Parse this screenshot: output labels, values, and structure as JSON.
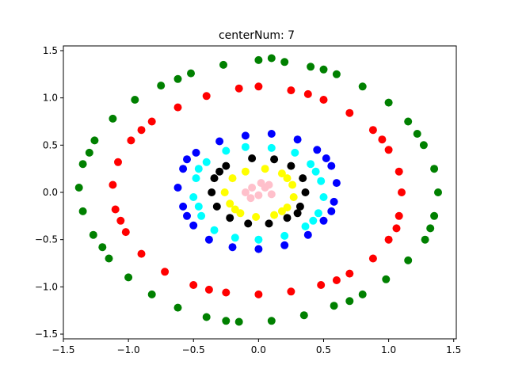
{
  "chart_data": {
    "type": "scatter",
    "title": "centerNum: 7",
    "xlabel": "",
    "ylabel": "",
    "xlim": [
      -1.5,
      1.52
    ],
    "ylim": [
      -1.55,
      1.55
    ],
    "xticks": [
      -1.5,
      -1.0,
      -0.5,
      0.0,
      0.5,
      1.0,
      1.5
    ],
    "yticks": [
      -1.5,
      -1.0,
      -0.5,
      0.0,
      0.5,
      1.0,
      1.5
    ],
    "xtick_labels": [
      "−1.5",
      "−1.0",
      "−0.5",
      "0.0",
      "0.5",
      "1.0",
      "1.5"
    ],
    "ytick_labels": [
      "−1.5",
      "−1.0",
      "−0.5",
      "0.0",
      "0.5",
      "1.0",
      "1.5"
    ],
    "grid": false,
    "legend": "none",
    "series": [
      {
        "color": "#008000",
        "points": [
          [
            0,
            1.4
          ],
          [
            0.2,
            1.38
          ],
          [
            0.4,
            1.33
          ],
          [
            0.6,
            1.25
          ],
          [
            0.8,
            1.12
          ],
          [
            1.0,
            0.95
          ],
          [
            1.15,
            0.75
          ],
          [
            1.27,
            0.5
          ],
          [
            1.35,
            0.25
          ],
          [
            1.38,
            0
          ],
          [
            1.35,
            -0.25
          ],
          [
            1.28,
            -0.5
          ],
          [
            1.15,
            -0.72
          ],
          [
            0.98,
            -0.92
          ],
          [
            0.8,
            -1.08
          ],
          [
            0.58,
            -1.2
          ],
          [
            0.35,
            -1.3
          ],
          [
            0.1,
            -1.36
          ],
          [
            -0.15,
            -1.37
          ],
          [
            -0.4,
            -1.32
          ],
          [
            -0.62,
            -1.22
          ],
          [
            -0.82,
            -1.08
          ],
          [
            -1.0,
            -0.9
          ],
          [
            -1.15,
            -0.7
          ],
          [
            -1.27,
            -0.45
          ],
          [
            -1.35,
            -0.2
          ],
          [
            -1.38,
            0.05
          ],
          [
            -1.35,
            0.3
          ],
          [
            -1.26,
            0.55
          ],
          [
            -1.12,
            0.78
          ],
          [
            -0.95,
            0.98
          ],
          [
            -0.75,
            1.13
          ],
          [
            -0.52,
            1.26
          ],
          [
            -0.27,
            1.35
          ],
          [
            0.1,
            1.42
          ],
          [
            0.5,
            1.3
          ],
          [
            1.22,
            0.62
          ],
          [
            1.32,
            -0.38
          ],
          [
            0.7,
            -1.15
          ],
          [
            -0.25,
            -1.36
          ],
          [
            -1.2,
            -0.58
          ],
          [
            -1.3,
            0.42
          ],
          [
            -0.62,
            1.2
          ]
        ]
      },
      {
        "color": "#ff0000",
        "points": [
          [
            0,
            1.12
          ],
          [
            0.25,
            1.08
          ],
          [
            0.5,
            0.98
          ],
          [
            0.7,
            0.84
          ],
          [
            0.88,
            0.66
          ],
          [
            1.0,
            0.45
          ],
          [
            1.08,
            0.22
          ],
          [
            1.1,
            0
          ],
          [
            1.08,
            -0.25
          ],
          [
            1.0,
            -0.5
          ],
          [
            0.88,
            -0.7
          ],
          [
            0.7,
            -0.86
          ],
          [
            0.48,
            -0.98
          ],
          [
            0.25,
            -1.05
          ],
          [
            0,
            -1.08
          ],
          [
            -0.25,
            -1.06
          ],
          [
            -0.5,
            -0.98
          ],
          [
            -0.72,
            -0.84
          ],
          [
            -0.9,
            -0.65
          ],
          [
            -1.02,
            -0.42
          ],
          [
            -1.1,
            -0.18
          ],
          [
            -1.12,
            0.08
          ],
          [
            -1.08,
            0.32
          ],
          [
            -0.98,
            0.55
          ],
          [
            -0.82,
            0.75
          ],
          [
            -0.62,
            0.9
          ],
          [
            -0.4,
            1.02
          ],
          [
            -0.15,
            1.1
          ],
          [
            0.38,
            1.04
          ],
          [
            0.95,
            0.56
          ],
          [
            1.06,
            -0.38
          ],
          [
            0.6,
            -0.93
          ],
          [
            -0.38,
            -1.03
          ],
          [
            -1.06,
            -0.3
          ],
          [
            -0.9,
            0.66
          ]
        ]
      },
      {
        "color": "#0000ff",
        "points": [
          [
            -0.1,
            0.6
          ],
          [
            0.1,
            0.62
          ],
          [
            0.3,
            0.56
          ],
          [
            0.45,
            0.45
          ],
          [
            0.56,
            0.28
          ],
          [
            0.6,
            0.1
          ],
          [
            0.58,
            -0.1
          ],
          [
            0.5,
            -0.3
          ],
          [
            0.38,
            -0.45
          ],
          [
            0.2,
            -0.56
          ],
          [
            0,
            -0.6
          ],
          [
            -0.2,
            -0.58
          ],
          [
            -0.38,
            -0.5
          ],
          [
            -0.5,
            -0.35
          ],
          [
            -0.58,
            -0.15
          ],
          [
            -0.62,
            0.05
          ],
          [
            -0.58,
            0.25
          ],
          [
            -0.48,
            0.42
          ],
          [
            -0.3,
            0.54
          ],
          [
            0.52,
            0.36
          ],
          [
            0.56,
            -0.2
          ],
          [
            -0.55,
            -0.25
          ],
          [
            -0.55,
            0.35
          ]
        ]
      },
      {
        "color": "#00ffff",
        "points": [
          [
            -0.1,
            0.48
          ],
          [
            0.1,
            0.47
          ],
          [
            0.28,
            0.42
          ],
          [
            0.4,
            0.3
          ],
          [
            0.48,
            0.12
          ],
          [
            0.5,
            -0.05
          ],
          [
            0.46,
            -0.22
          ],
          [
            0.36,
            -0.36
          ],
          [
            0.2,
            -0.46
          ],
          [
            0,
            -0.5
          ],
          [
            -0.18,
            -0.48
          ],
          [
            -0.34,
            -0.4
          ],
          [
            -0.44,
            -0.25
          ],
          [
            -0.5,
            -0.05
          ],
          [
            -0.48,
            0.15
          ],
          [
            -0.4,
            0.32
          ],
          [
            -0.25,
            0.44
          ],
          [
            0.44,
            0.22
          ],
          [
            0.42,
            -0.3
          ],
          [
            -0.46,
            -0.15
          ],
          [
            -0.46,
            0.25
          ]
        ]
      },
      {
        "color": "#000000",
        "points": [
          [
            -0.05,
            0.36
          ],
          [
            0.12,
            0.35
          ],
          [
            0.25,
            0.28
          ],
          [
            0.34,
            0.15
          ],
          [
            0.36,
            0
          ],
          [
            0.32,
            -0.15
          ],
          [
            0.22,
            -0.27
          ],
          [
            0.08,
            -0.33
          ],
          [
            -0.08,
            -0.33
          ],
          [
            -0.22,
            -0.27
          ],
          [
            -0.32,
            -0.15
          ],
          [
            -0.36,
            0
          ],
          [
            -0.34,
            0.15
          ],
          [
            -0.25,
            0.28
          ],
          [
            0.3,
            -0.22
          ],
          [
            -0.3,
            0.22
          ]
        ]
      },
      {
        "color": "#ffff00",
        "points": [
          [
            -0.2,
            0.15
          ],
          [
            -0.1,
            0.22
          ],
          [
            0.05,
            0.25
          ],
          [
            0.18,
            0.2
          ],
          [
            0.26,
            0.08
          ],
          [
            0.27,
            -0.05
          ],
          [
            0.22,
            -0.16
          ],
          [
            0.12,
            -0.24
          ],
          [
            -0.02,
            -0.26
          ],
          [
            -0.14,
            -0.22
          ],
          [
            -0.22,
            -0.12
          ],
          [
            -0.26,
            0
          ],
          [
            0.18,
            -0.2
          ],
          [
            -0.18,
            -0.18
          ],
          [
            0.22,
            0.15
          ]
        ]
      },
      {
        "color": "#ffc0cb",
        "points": [
          [
            -0.05,
            0.05
          ],
          [
            0.05,
            0.05
          ],
          [
            0.0,
            -0.03
          ],
          [
            0.1,
            -0.02
          ],
          [
            -0.1,
            0
          ],
          [
            0.02,
            0.1
          ],
          [
            0.08,
            0.08
          ],
          [
            -0.06,
            -0.06
          ]
        ]
      }
    ]
  }
}
